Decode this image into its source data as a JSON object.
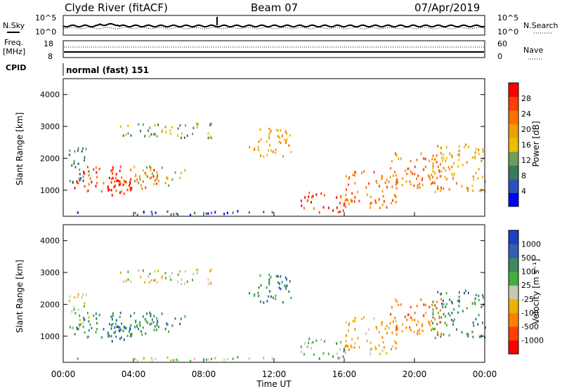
{
  "header": {
    "station": "Clyde River (fitACF)",
    "beam": "Beam 07",
    "date": "07/Apr/2019"
  },
  "side_labels": {
    "nsky": "N.Sky",
    "nsearch": "N.Search",
    "freq": "Freq.",
    "freq_unit": "[MHz]",
    "nave": "Nave",
    "cpid": "CPID",
    "cpid_value": "normal (fast) 151"
  },
  "noise_panel": {
    "left_ticks": [
      "10^5",
      "10^0"
    ],
    "right_ticks": [
      "10^5",
      "10^0"
    ]
  },
  "freq_panel": {
    "left_ticks": [
      "18",
      "8"
    ],
    "right_ticks": [
      "60",
      "0"
    ]
  },
  "colors": {
    "power": [
      "#0000ff",
      "#2a52be",
      "#3a7b5b",
      "#6f9d5c",
      "#e8c000",
      "#f0a000",
      "#ff7000",
      "#ff4000",
      "#ff0000"
    ],
    "velocity": [
      "#ff0000",
      "#ff4000",
      "#ff8000",
      "#f0b000",
      "#c8c8b0",
      "#40b040",
      "#3a8a5a",
      "#3060b0",
      "#2040c0"
    ]
  },
  "chart_data": [
    {
      "type": "heatmap",
      "panel": "power",
      "ylabel": "Slant Range [km]",
      "xlim": [
        "00:00",
        "00:00"
      ],
      "ylim": [
        180,
        4500
      ],
      "yticks": [
        "1000",
        "2000",
        "3000",
        "4000"
      ],
      "colorbar": {
        "label": "Power [dB]",
        "ticks": [
          "4",
          "8",
          "12",
          "16",
          "20",
          "24",
          "28"
        ],
        "range": [
          0,
          30
        ]
      }
    },
    {
      "type": "heatmap",
      "panel": "velocity",
      "ylabel": "Slant Range [km]",
      "xlabel": "Time UT",
      "xticks": [
        "00:00",
        "04:00",
        "08:00",
        "12:00",
        "16:00",
        "20:00",
        "00:00"
      ],
      "ylim": [
        180,
        4500
      ],
      "yticks": [
        "1000",
        "2000",
        "3000",
        "4000"
      ],
      "colorbar": {
        "label": "Velocity [m s⁻¹]",
        "ticks": [
          "1000",
          "500",
          "100",
          "25",
          "-25",
          "-100",
          "-500",
          "-1000"
        ]
      }
    }
  ]
}
